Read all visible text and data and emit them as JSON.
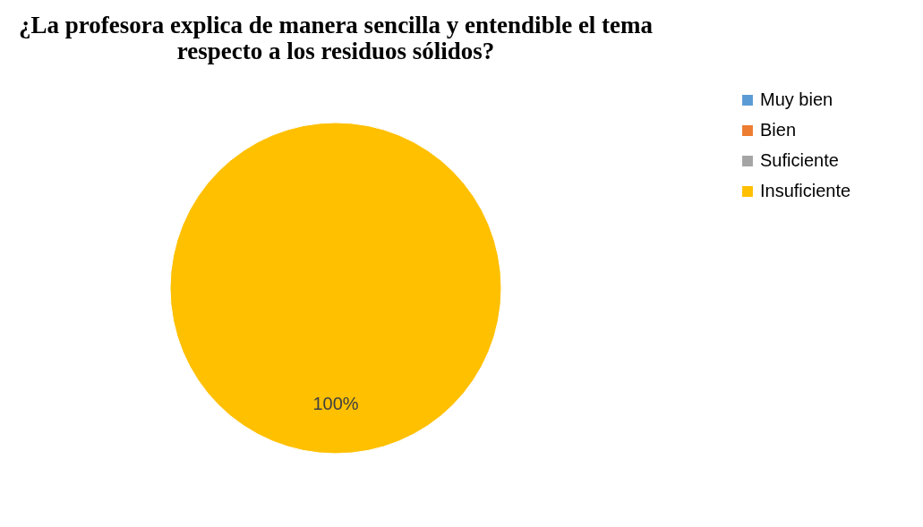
{
  "chart_data": {
    "type": "pie",
    "title": [
      "¿La profesora explica de manera sencilla y entendible el tema",
      "respecto a los residuos sólidos?"
    ],
    "categories": [
      "Muy bien",
      "Bien",
      "Suficiente",
      "Insuficiente"
    ],
    "values": [
      0,
      0,
      0,
      100
    ],
    "colors": [
      "#5b9bd5",
      "#ed7d31",
      "#a5a5a5",
      "#ffc000"
    ],
    "value_labels": [
      null,
      null,
      null,
      "100%"
    ],
    "legend": "right"
  }
}
